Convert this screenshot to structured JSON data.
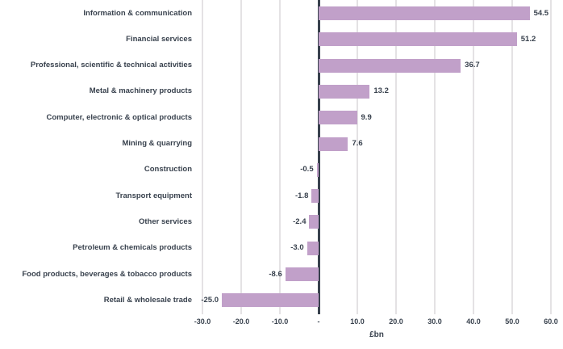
{
  "chart_data": {
    "type": "bar",
    "orientation": "horizontal",
    "title": "",
    "xlabel": "£bn",
    "ylabel": "",
    "xlim": [
      -33,
      63
    ],
    "grid": true,
    "bar_color": "#c1a0c9",
    "text_color": "#39424e",
    "grid_color": "#e4e2e4",
    "zero_line_color": "#39424e",
    "categories": [
      "Information & communication",
      "Financial services",
      "Professional, scientific & technical activities",
      "Metal & machinery products",
      "Computer, electronic & optical products",
      "Mining & quarrying",
      "Construction",
      "Transport equipment",
      "Other services",
      "Petroleum & chemicals products",
      "Food products, beverages & tobacco products",
      "Retail & wholesale trade"
    ],
    "values": [
      54.5,
      51.2,
      36.7,
      13.2,
      9.9,
      7.6,
      -0.5,
      -1.8,
      -2.4,
      -3.0,
      -8.6,
      -25.0
    ],
    "value_labels": [
      "54.5",
      "51.2",
      "36.7",
      "13.2",
      "9.9",
      "7.6",
      "-0.5",
      "-1.8",
      "-2.4",
      "-3.0",
      "-8.6",
      "-25.0"
    ],
    "x_ticks": [
      {
        "v": -30,
        "label": "-30.0"
      },
      {
        "v": -20,
        "label": "-20.0"
      },
      {
        "v": -10,
        "label": "-10.0"
      },
      {
        "v": 0,
        "label": "-"
      },
      {
        "v": 10,
        "label": "10.0"
      },
      {
        "v": 20,
        "label": "20.0"
      },
      {
        "v": 30,
        "label": "30.0"
      },
      {
        "v": 40,
        "label": "40.0"
      },
      {
        "v": 50,
        "label": "50.0"
      },
      {
        "v": 60,
        "label": "60.0"
      }
    ]
  }
}
